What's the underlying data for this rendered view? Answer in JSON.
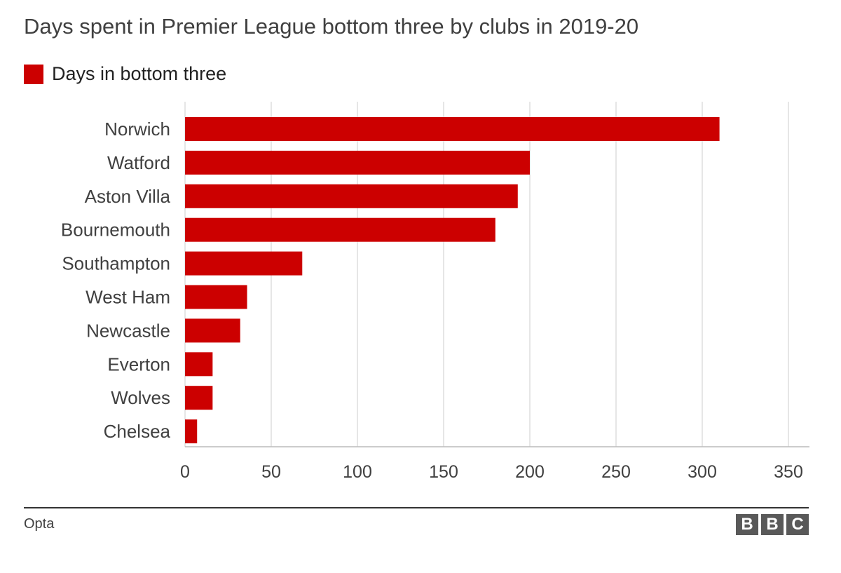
{
  "chart_data": {
    "type": "bar",
    "orientation": "horizontal",
    "title": "Days spent in Premier League bottom three by clubs in 2019-20",
    "legend": [
      "Days in bottom three"
    ],
    "legend_placement": "top-left",
    "categories": [
      "Norwich",
      "Watford",
      "Aston Villa",
      "Bournemouth",
      "Southampton",
      "West Ham",
      "Newcastle",
      "Everton",
      "Wolves",
      "Chelsea"
    ],
    "series": [
      {
        "name": "Days in bottom three",
        "values": [
          310,
          200,
          193,
          180,
          68,
          36,
          32,
          16,
          16,
          7
        ]
      }
    ],
    "xlim": [
      0,
      350
    ],
    "xticks": [
      0,
      50,
      100,
      150,
      200,
      250,
      300,
      350
    ],
    "grid": true,
    "xlabel": "",
    "ylabel": ""
  },
  "colors": {
    "bar": "#cc0000",
    "grid": "#dddddd",
    "text": "#404040"
  },
  "footer": {
    "source": "Opta",
    "logo": [
      "B",
      "B",
      "C"
    ]
  }
}
